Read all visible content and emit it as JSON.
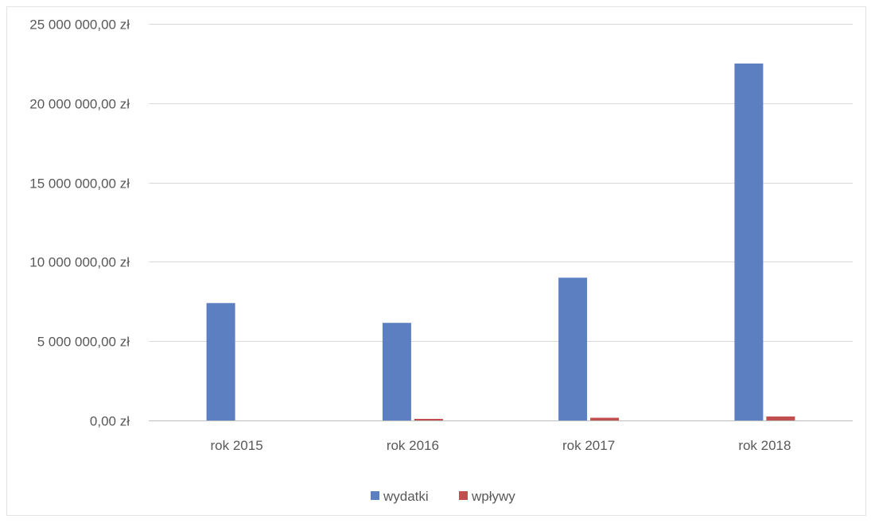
{
  "chart_data": {
    "type": "bar",
    "title": "",
    "xlabel": "",
    "ylabel": "",
    "categories": [
      "rok 2015",
      "rok 2016",
      "rok 2017",
      "rok 2018"
    ],
    "series": [
      {
        "name": "wydatki",
        "color": "#5b7fc0",
        "values": [
          7400000,
          6150000,
          9000000,
          22500000
        ]
      },
      {
        "name": "wpływy",
        "color": "#c0504d",
        "values": [
          0,
          50000,
          170000,
          250000
        ]
      }
    ],
    "ylim": [
      0,
      25000000
    ],
    "yticks": [
      0,
      5000000,
      10000000,
      15000000,
      20000000,
      25000000
    ],
    "ytick_labels": [
      "0,00 zł",
      "5 000 000,00 zł",
      "10 000 000,00 zł",
      "15 000 000,00 zł",
      "20 000 000,00 zł",
      "25 000 000,00 zł"
    ],
    "grid": true,
    "legend_position": "bottom-center"
  }
}
